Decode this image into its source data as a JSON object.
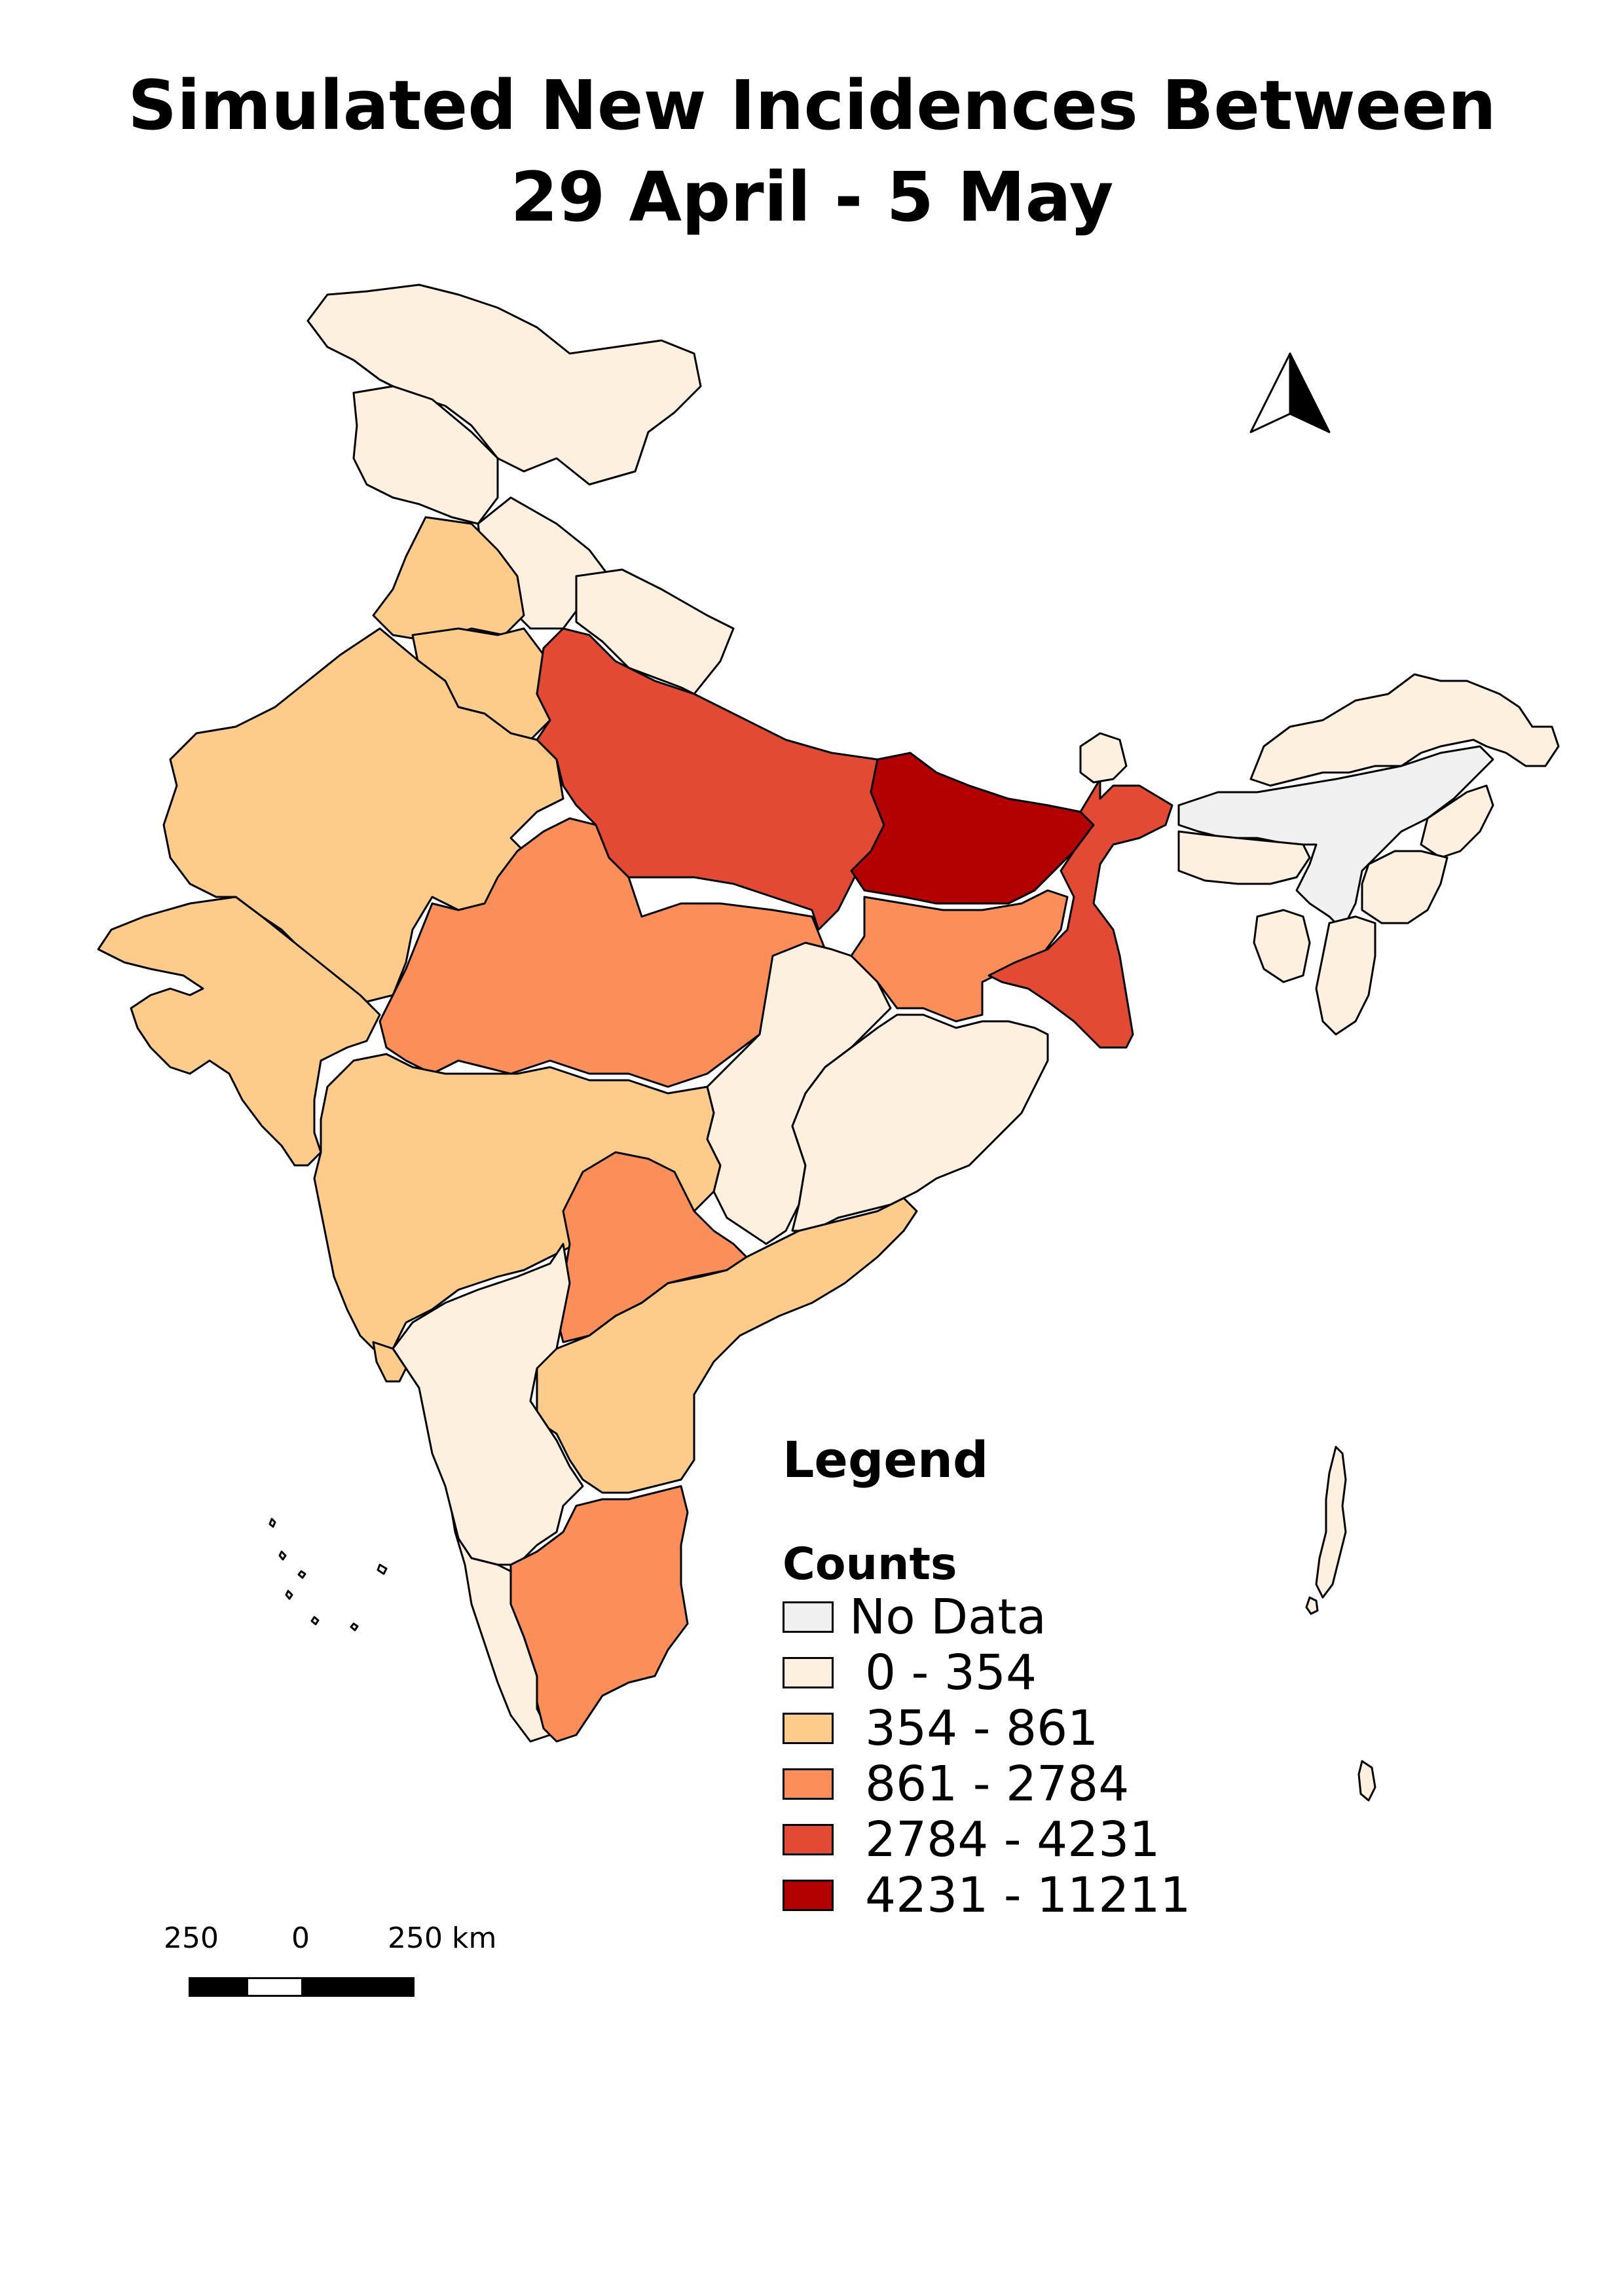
{
  "title": {
    "line1": "Simulated New Incidences Between",
    "line2": "29 April - 5 May"
  },
  "legend": {
    "title": "Legend",
    "field": "Counts",
    "classes": [
      {
        "label": "No Data",
        "color": "#eff0ef"
      },
      {
        "label": "0 - 354",
        "color": "#fef0de"
      },
      {
        "label": "354 - 861",
        "color": "#fdcc8b"
      },
      {
        "label": "861 - 2784",
        "color": "#fc8e59"
      },
      {
        "label": "2784 - 4231",
        "color": "#e34a33"
      },
      {
        "label": "4231 - 11211",
        "color": "#b30000"
      }
    ]
  },
  "scale_bar": {
    "left": "250",
    "middle": "0",
    "right": "250 km"
  },
  "north_arrow": {
    "icon": "north-arrow-icon"
  },
  "regions": [
    {
      "name": "Jammu and Kashmir",
      "class": 1
    },
    {
      "name": "Himachal Pradesh",
      "class": 1
    },
    {
      "name": "Punjab",
      "class": 2
    },
    {
      "name": "Uttarakhand",
      "class": 1
    },
    {
      "name": "Haryana",
      "class": 2
    },
    {
      "name": "Rajasthan",
      "class": 2
    },
    {
      "name": "Uttar Pradesh",
      "class": 4
    },
    {
      "name": "Bihar",
      "class": 5
    },
    {
      "name": "Sikkim",
      "class": 1
    },
    {
      "name": "Arunachal Pradesh",
      "class": 1
    },
    {
      "name": "Assam",
      "class": 0
    },
    {
      "name": "Meghalaya",
      "class": 1
    },
    {
      "name": "Nagaland",
      "class": 1
    },
    {
      "name": "Manipur",
      "class": 1
    },
    {
      "name": "Mizoram",
      "class": 1
    },
    {
      "name": "Tripura",
      "class": 1
    },
    {
      "name": "West Bengal",
      "class": 4
    },
    {
      "name": "Jharkhand",
      "class": 3
    },
    {
      "name": "Gujarat",
      "class": 2
    },
    {
      "name": "Madhya Pradesh",
      "class": 3
    },
    {
      "name": "Chhattisgarh",
      "class": 1
    },
    {
      "name": "Odisha",
      "class": 1
    },
    {
      "name": "Maharashtra",
      "class": 2
    },
    {
      "name": "Telangana",
      "class": 3
    },
    {
      "name": "Andhra Pradesh",
      "class": 2
    },
    {
      "name": "Karnataka",
      "class": 1
    },
    {
      "name": "Goa",
      "class": 2
    },
    {
      "name": "Kerala",
      "class": 1
    },
    {
      "name": "Tamil Nadu",
      "class": 3
    },
    {
      "name": "Andaman and Nicobar Islands",
      "class": 1
    },
    {
      "name": "Lakshadweep",
      "class": 1
    }
  ]
}
